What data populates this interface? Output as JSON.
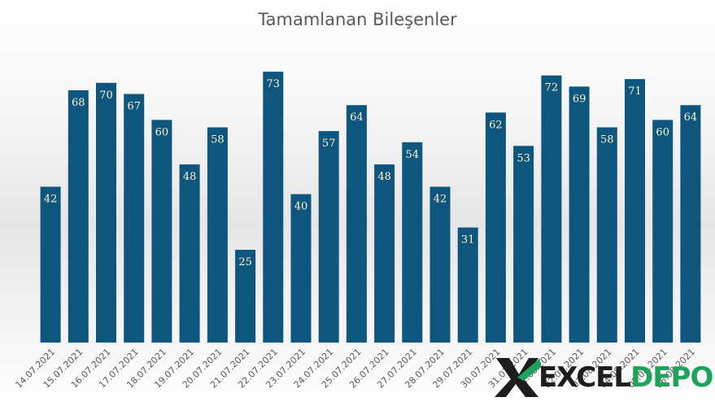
{
  "chart_data": {
    "type": "bar",
    "title": "Tamamlanan Bileşenler",
    "xlabel": "",
    "ylabel": "",
    "ylim": [
      0,
      76
    ],
    "grid": false,
    "legend": "none",
    "categories": [
      "14.07.2021",
      "15.07.2021",
      "16.07.2021",
      "17.07.2021",
      "18.07.2021",
      "19.07.2021",
      "20.07.2021",
      "21.07.2021",
      "22.07.2021",
      "23.07.2021",
      "24.07.2021",
      "25.07.2021",
      "26.07.2021",
      "27.07.2021",
      "28.07.2021",
      "29.07.2021",
      "30.07.2021",
      "31.07.2021",
      "01.08.2021",
      "02.08.2021",
      "03.08.2021",
      "04.08.2021",
      "05.08.2021",
      "06.08.2021"
    ],
    "values": [
      42,
      68,
      70,
      67,
      60,
      48,
      58,
      25,
      73,
      40,
      57,
      64,
      48,
      54,
      42,
      31,
      62,
      53,
      72,
      69,
      58,
      71,
      60,
      64
    ],
    "colors": {
      "bar": "#0e567e",
      "data_label": "#fff2cc",
      "axis_text": "#595959"
    }
  },
  "logo": {
    "excel": "EXCEL",
    "depo": "DEPO"
  }
}
